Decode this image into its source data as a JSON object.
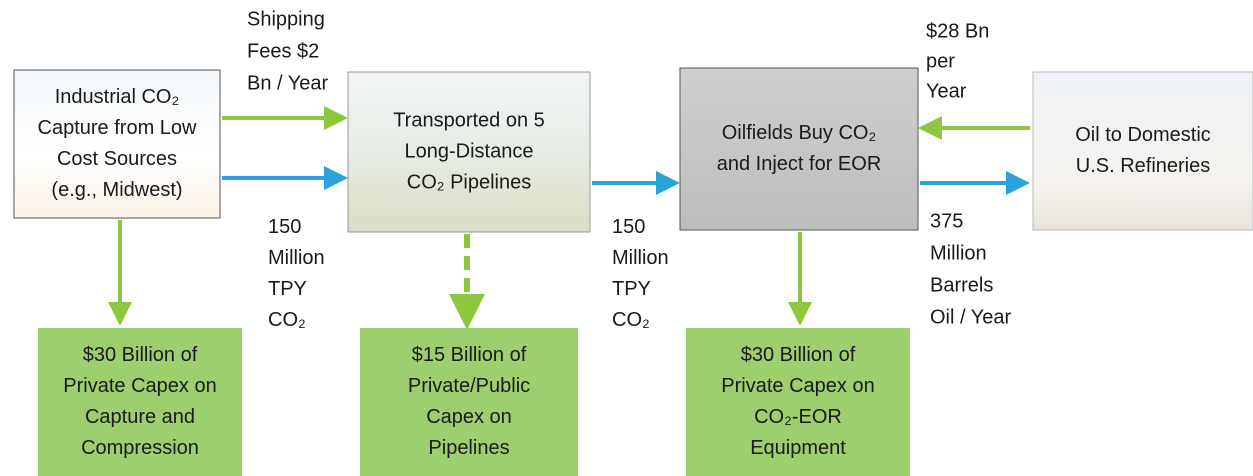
{
  "nodes": [
    {
      "lines": [
        "Industrial CO₂",
        "Capture from Low",
        "Cost Sources",
        "(e.g., Midwest)"
      ]
    },
    {
      "lines": [
        "Transported on 5",
        "Long-Distance",
        "CO₂ Pipelines"
      ]
    },
    {
      "lines": [
        "Oilfields Buy CO₂",
        "and Inject for EOR"
      ]
    },
    {
      "lines": [
        "Oil to Domestic",
        "U.S. Refineries"
      ]
    }
  ],
  "outputs": [
    {
      "lines": [
        "$30 Billion of",
        "Private Capex on",
        "Capture and",
        "Compression"
      ]
    },
    {
      "lines": [
        "$15 Billion of",
        "Private/Public",
        "Capex on",
        "Pipelines"
      ]
    },
    {
      "lines": [
        "$30 Billion of",
        "Private Capex on",
        "CO₂-EOR",
        "Equipment"
      ]
    }
  ],
  "flow_labels": [
    {
      "lines": [
        "Shipping",
        "Fees $2",
        "Bn / Year"
      ]
    },
    {
      "lines": [
        "150",
        "Million",
        "TPY",
        "CO₂"
      ]
    },
    {
      "lines": [
        "150",
        "Million",
        "TPY",
        "CO₂"
      ]
    },
    {
      "lines": [
        "$28 Bn",
        "per",
        "Year"
      ]
    },
    {
      "lines": [
        "375",
        "Million",
        "Barrels",
        "Oil / Year"
      ]
    }
  ]
}
